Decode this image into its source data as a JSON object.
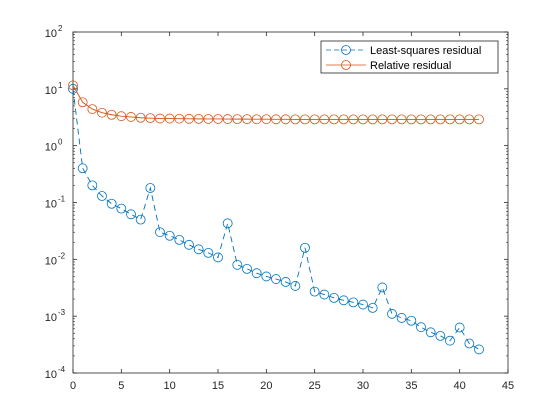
{
  "chart_data": {
    "type": "line",
    "xlabel": "",
    "ylabel": "",
    "title": "",
    "yscale": "log",
    "xlim": [
      0,
      45
    ],
    "ylim": [
      0.0001,
      100
    ],
    "xticks": [
      "0",
      "5",
      "10",
      "15",
      "20",
      "25",
      "30",
      "35",
      "40",
      "45"
    ],
    "xtick_values": [
      0,
      5,
      10,
      15,
      20,
      25,
      30,
      35,
      40,
      45
    ],
    "yticks": [
      {
        "value": 0.0001,
        "base": "10",
        "exp": "-4"
      },
      {
        "value": 0.001,
        "base": "10",
        "exp": "-3"
      },
      {
        "value": 0.01,
        "base": "10",
        "exp": "-2"
      },
      {
        "value": 0.1,
        "base": "10",
        "exp": "-1"
      },
      {
        "value": 1,
        "base": "10",
        "exp": "0"
      },
      {
        "value": 10,
        "base": "10",
        "exp": "1"
      },
      {
        "value": 100,
        "base": "10",
        "exp": "2"
      }
    ],
    "grid": false,
    "legend_position": "top-right",
    "x": [
      0,
      1,
      2,
      3,
      4,
      5,
      6,
      7,
      8,
      9,
      10,
      11,
      12,
      13,
      14,
      15,
      16,
      17,
      18,
      19,
      20,
      21,
      22,
      23,
      24,
      25,
      26,
      27,
      28,
      29,
      30,
      31,
      32,
      33,
      34,
      35,
      36,
      37,
      38,
      39,
      40,
      41,
      42
    ],
    "series": [
      {
        "name": "Least-squares residual",
        "color": "#0072BD",
        "line_style": "dashed",
        "marker": "circle",
        "values": [
          10,
          0.4,
          0.2,
          0.13,
          0.095,
          0.078,
          0.062,
          0.05,
          0.18,
          0.03,
          0.026,
          0.022,
          0.018,
          0.015,
          0.013,
          0.0108,
          0.043,
          0.008,
          0.0068,
          0.0057,
          0.005,
          0.0045,
          0.004,
          0.0034,
          0.016,
          0.0027,
          0.0024,
          0.0021,
          0.0019,
          0.00175,
          0.0016,
          0.0014,
          0.0032,
          0.0011,
          0.00093,
          0.00083,
          0.00064,
          0.00052,
          0.00045,
          0.00037,
          0.00063,
          0.00033,
          0.00026
        ]
      },
      {
        "name": "Relative residual",
        "color": "#D95319",
        "line_style": "solid",
        "marker": "circle",
        "values": [
          11.5,
          5.8,
          4.4,
          3.8,
          3.5,
          3.3,
          3.2,
          3.1,
          3.05,
          3.0,
          3.0,
          2.98,
          2.97,
          2.96,
          2.95,
          2.95,
          2.94,
          2.93,
          2.93,
          2.92,
          2.92,
          2.91,
          2.91,
          2.9,
          2.9,
          2.9,
          2.9,
          2.9,
          2.9,
          2.9,
          2.9,
          2.9,
          2.9,
          2.9,
          2.9,
          2.9,
          2.9,
          2.9,
          2.9,
          2.9,
          2.9,
          2.9,
          2.9
        ]
      }
    ]
  }
}
